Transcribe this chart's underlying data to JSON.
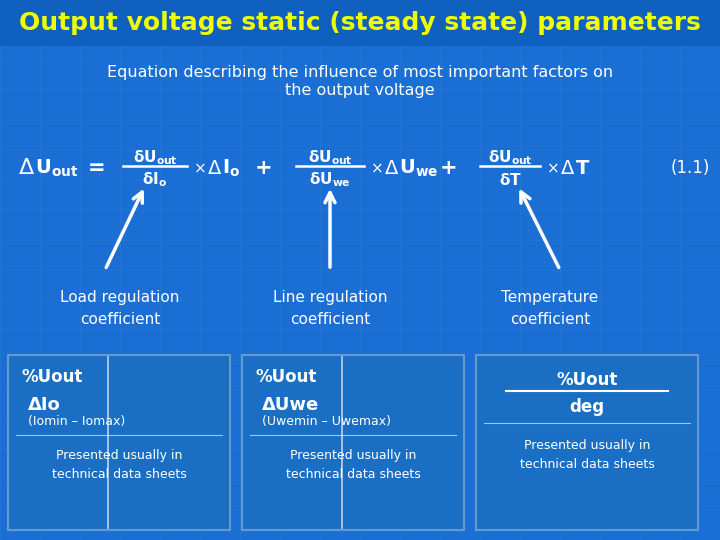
{
  "title": "Output voltage static (steady state) parameters",
  "subtitle_line1": "Equation describing the influence of most important factors on",
  "subtitle_line2": "the output voltage",
  "bg_color": "#1B6FD4",
  "bg_color_title": "#1060C0",
  "title_color": "#EEFF00",
  "white": "#FFFFFF",
  "grid_color": "#3080D0",
  "equation_number": "(1.1)",
  "label1": "Load regulation\ncoefficient",
  "label2": "Line regulation\ncoefficient",
  "label3": "Temperature\ncoefficient",
  "box1_top": "%Uout",
  "box1_mid1": "ΔIo",
  "box1_mid2": "(Iomin – Iomax)",
  "box1_bot": "Presented usually in\ntechnical data sheets",
  "box2_top": "%Uout",
  "box2_mid1": "ΔUwe",
  "box2_mid2": "(Uwemin – Uwemax)",
  "box2_bot": "Presented usually in\ntechnical data sheets",
  "box3_top": "%Uout",
  "box3_mid": "deg",
  "box3_bot": "Presented usually in\ntechnical data sheets"
}
